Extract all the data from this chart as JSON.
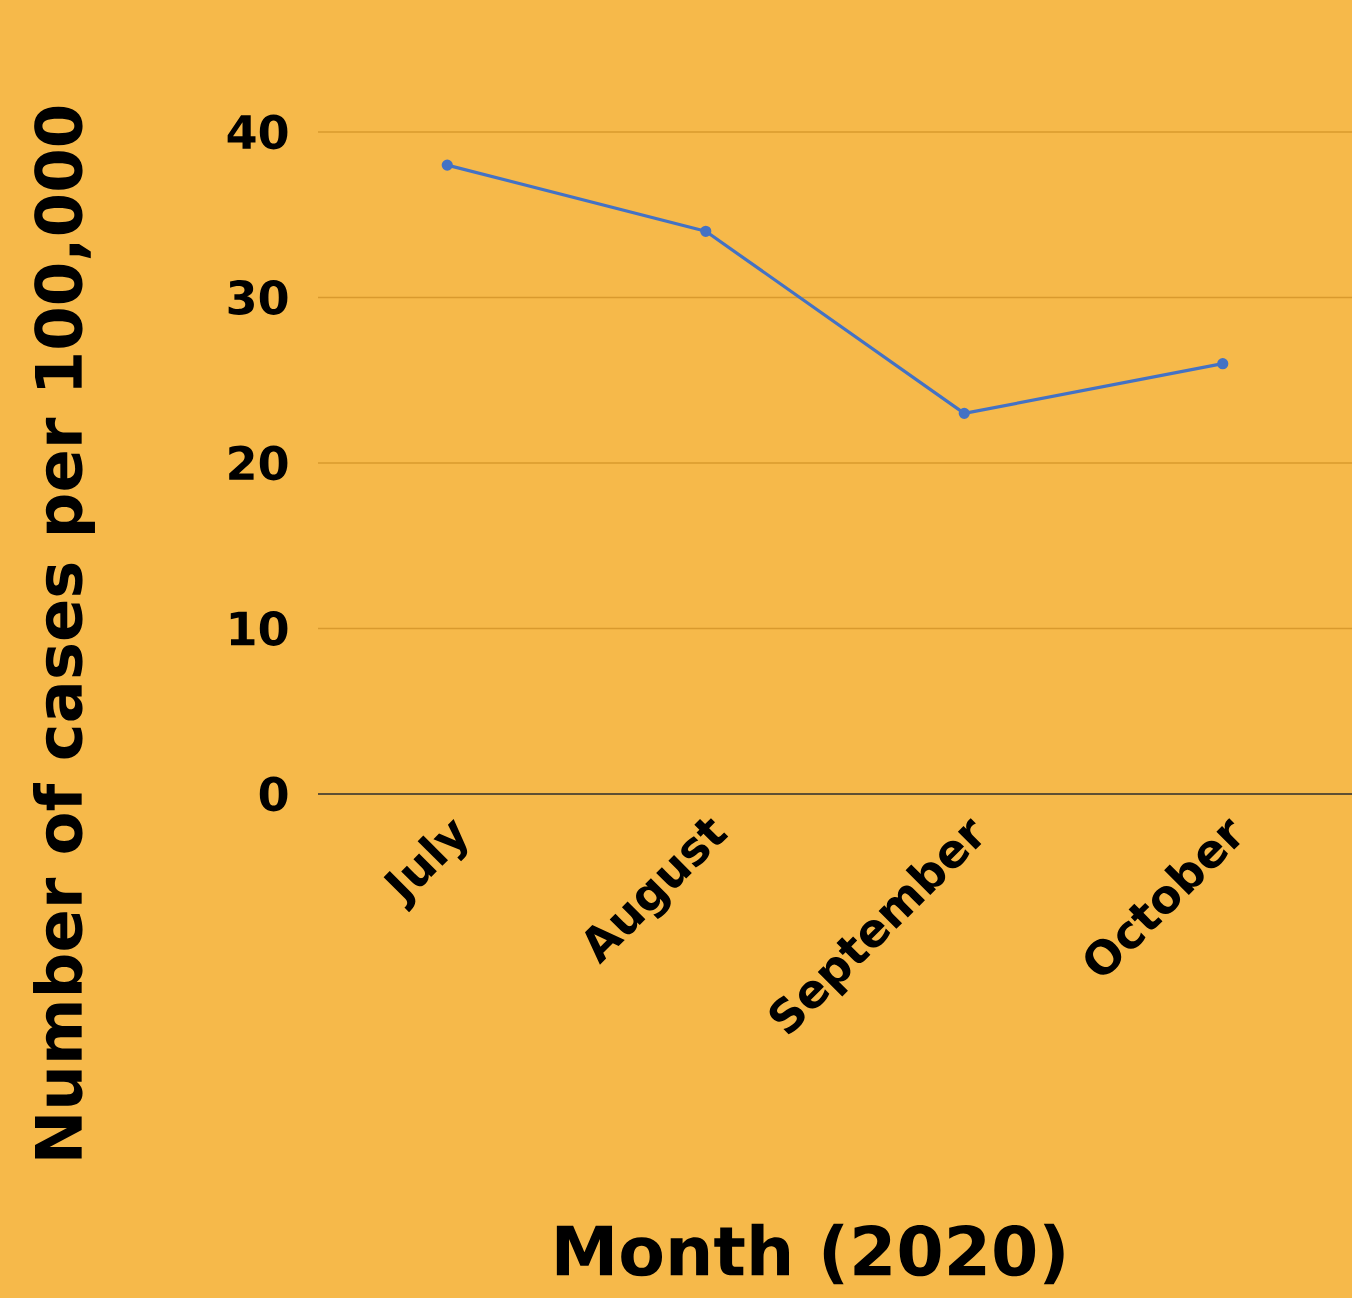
{
  "chart_data": {
    "type": "line",
    "xlabel": "Month (2020)",
    "ylabel": "Number of cases per 100,000",
    "categories": [
      "July",
      "August",
      "September",
      "October"
    ],
    "series": [
      {
        "color": "#4472c4",
        "values": [
          38,
          34,
          23,
          26
        ]
      }
    ],
    "ylim": [
      0,
      40
    ],
    "yticks": [
      0,
      10,
      20,
      30,
      40
    ],
    "grid": "y",
    "marker": "circle",
    "line_style": "solid"
  }
}
